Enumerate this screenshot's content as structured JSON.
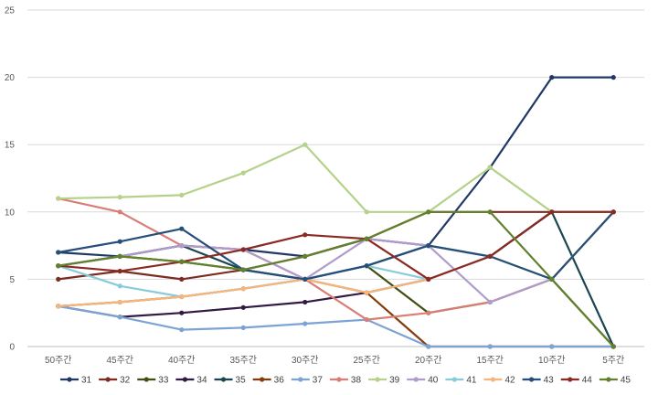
{
  "chart_data": {
    "type": "line",
    "title": "",
    "xlabel": "",
    "ylabel": "",
    "categories": [
      "50주간",
      "45주간",
      "40주간",
      "35주간",
      "30주간",
      "25주간",
      "20주간",
      "15주간",
      "10주간",
      "5주간"
    ],
    "ylim": [
      0,
      25
    ],
    "yticks": [
      0,
      5,
      10,
      15,
      20,
      25
    ],
    "grid": "horizontal",
    "legend_position": "bottom",
    "series": [
      {
        "name": "31",
        "color": "#203864",
        "values": [
          7,
          6.7,
          7.5,
          7.2,
          6.7,
          8,
          7.5,
          13.3,
          20,
          20
        ]
      },
      {
        "name": "32",
        "color": "#7b2c23",
        "values": [
          5,
          5.6,
          5,
          5.7,
          6.7,
          8,
          10,
          10,
          10,
          10
        ]
      },
      {
        "name": "33",
        "color": "#3e4f12",
        "values": [
          6,
          6.7,
          6.3,
          5.7,
          5,
          6,
          2.5,
          3.3,
          5,
          0
        ]
      },
      {
        "name": "34",
        "color": "#321a44",
        "values": [
          3,
          2.2,
          2.5,
          2.9,
          3.3,
          4,
          5,
          6.7,
          10,
          10
        ]
      },
      {
        "name": "35",
        "color": "#1b4650",
        "values": [
          6,
          6.7,
          7.5,
          5.7,
          5,
          6,
          7.5,
          6.7,
          10,
          0
        ]
      },
      {
        "name": "36",
        "color": "#843c0c",
        "values": [
          3,
          3.3,
          3.7,
          4.3,
          5,
          4,
          0,
          0,
          0,
          0
        ]
      },
      {
        "name": "37",
        "color": "#7da3d4",
        "values": [
          3,
          2.2,
          1.25,
          1.4,
          1.7,
          2,
          0,
          0,
          0,
          0
        ]
      },
      {
        "name": "38",
        "color": "#d97e76",
        "values": [
          11,
          10,
          7.5,
          7.2,
          5,
          2,
          2.5,
          3.3,
          5,
          10
        ]
      },
      {
        "name": "39",
        "color": "#b5d18a",
        "values": [
          11,
          11.1,
          11.25,
          12.9,
          15,
          10,
          10,
          13.3,
          10,
          10
        ]
      },
      {
        "name": "40",
        "color": "#b09ccc",
        "values": [
          6,
          6.7,
          7.5,
          7.2,
          5,
          8,
          7.5,
          3.3,
          5,
          10
        ]
      },
      {
        "name": "41",
        "color": "#88cbd9",
        "values": [
          6,
          4.5,
          3.7,
          4.3,
          5,
          6,
          5,
          6.7,
          5,
          10
        ]
      },
      {
        "name": "42",
        "color": "#f4b67c",
        "values": [
          3,
          3.3,
          3.7,
          4.3,
          5,
          4,
          5,
          6.7,
          5,
          10
        ]
      },
      {
        "name": "43",
        "color": "#254e79",
        "values": [
          7,
          7.8,
          8.75,
          5.7,
          5,
          6,
          7.5,
          6.7,
          5,
          10
        ]
      },
      {
        "name": "44",
        "color": "#8b2a23",
        "values": [
          6,
          5.6,
          6.3,
          7.2,
          8.3,
          8,
          5,
          6.7,
          10,
          10
        ]
      },
      {
        "name": "45",
        "color": "#62812c",
        "values": [
          6,
          6.7,
          6.3,
          5.7,
          6.7,
          8,
          10,
          10,
          5,
          0
        ]
      }
    ]
  }
}
